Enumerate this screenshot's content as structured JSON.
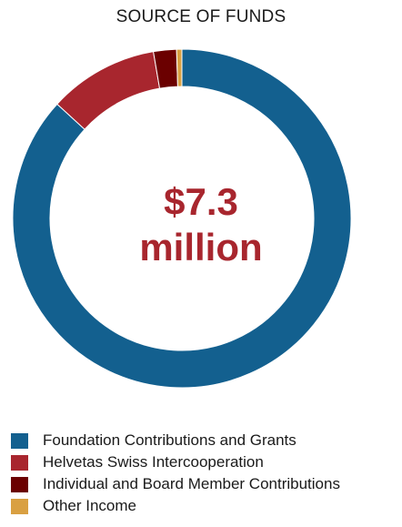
{
  "chart_data": {
    "type": "pie",
    "variant": "donut",
    "title": "SOURCE OF FUNDS",
    "center_label": [
      "$7.3",
      "million"
    ],
    "categories": [
      "Foundation Contributions and Grants",
      "Helvetas Swiss Intercooperation",
      "Individual and Board Member Contributions",
      "Other Income"
    ],
    "values": [
      86.8,
      10.5,
      2.2,
      0.5
    ],
    "colors": [
      "#13608f",
      "#a8262e",
      "#6b0000",
      "#d9a042"
    ],
    "legend_position": "bottom-left"
  }
}
